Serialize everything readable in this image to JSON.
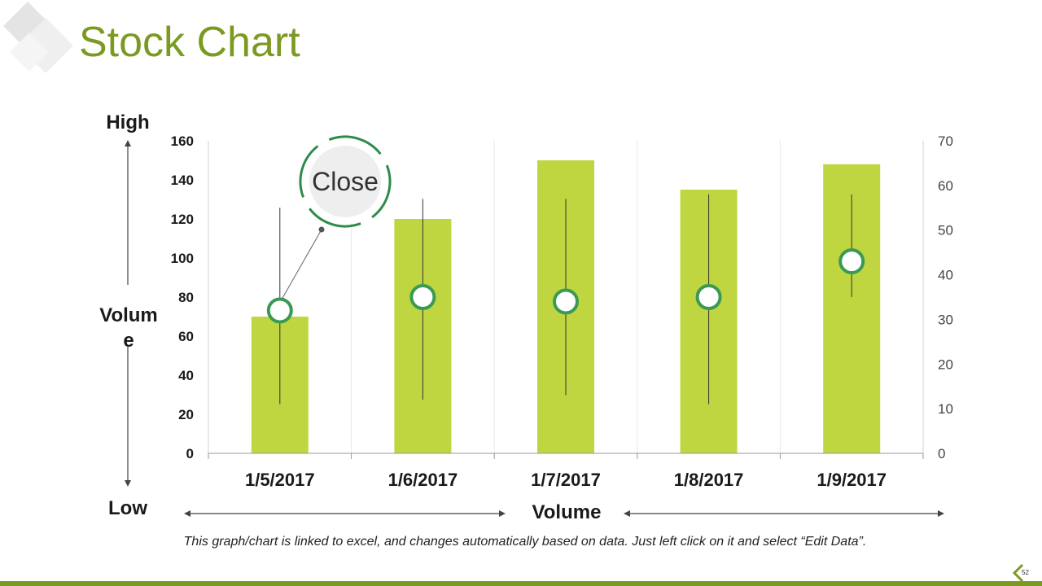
{
  "slide": {
    "title": "Stock Chart",
    "note": "This graph/chart is linked to excel, and changes automatically based on data. Just left click on it and select “Edit Data”.",
    "page_number": "52"
  },
  "labels": {
    "high": "High",
    "volume_side_1": "Volum",
    "volume_side_2": "e",
    "low": "Low",
    "volume_bottom": "Volume",
    "callout": "Close"
  },
  "colors": {
    "accent": "#7b9a21",
    "bar": "#bfd641",
    "marker": "#3a9a54",
    "grid": "#e8e8e8"
  },
  "chart_data": {
    "type": "bar",
    "categories": [
      "1/5/2017",
      "1/6/2017",
      "1/7/2017",
      "1/8/2017",
      "1/9/2017"
    ],
    "y_left": {
      "ticks": [
        0,
        20,
        40,
        60,
        80,
        100,
        120,
        140,
        160
      ],
      "ylim": [
        0,
        160
      ]
    },
    "y_right": {
      "ticks": [
        0,
        10,
        20,
        30,
        40,
        50,
        60,
        70
      ],
      "ylim": [
        0,
        70
      ]
    },
    "volume": [
      70,
      120,
      150,
      135,
      148
    ],
    "high": [
      55,
      57,
      57,
      58,
      58
    ],
    "low": [
      11,
      12,
      13,
      11,
      35
    ],
    "close": [
      32,
      35,
      34,
      35,
      43
    ],
    "grid": true
  }
}
